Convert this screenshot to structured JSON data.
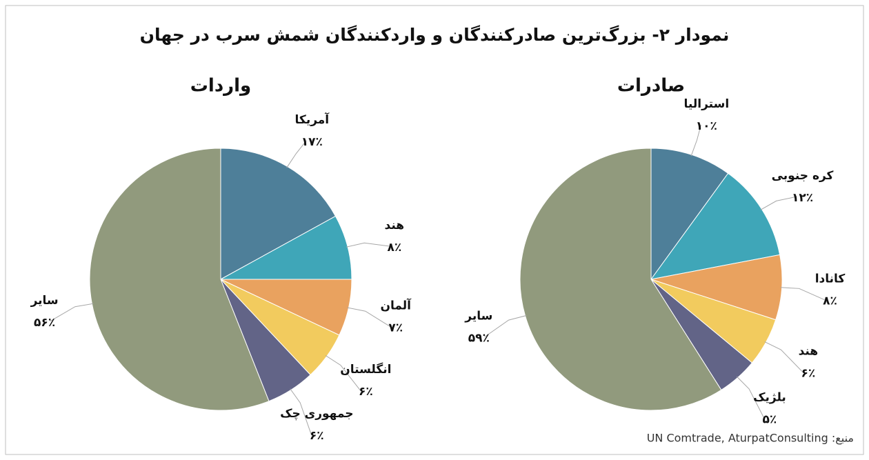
{
  "title": "نمودار ۲- بزرگ‌ترین صادرکنندگان و واردکنندگان شمش سرب در جهان",
  "source": "منبع: UN Comtrade, AturpatConsulting",
  "chart_data": [
    {
      "type": "pie",
      "title": "واردات",
      "categories": [
        "آمریکا",
        "هند",
        "آلمان",
        "انگلستان",
        "جمهوری چک",
        "سایر"
      ],
      "values": [
        17,
        8,
        7,
        6,
        6,
        56
      ],
      "value_labels": [
        "۱۷٪",
        "۸٪",
        "۷٪",
        "۶٪",
        "۶٪",
        "۵۶٪"
      ],
      "colors": [
        "#4e7f99",
        "#3fa6b8",
        "#e9a25f",
        "#f2cb5e",
        "#626487",
        "#919a7d"
      ]
    },
    {
      "type": "pie",
      "title": "صادرات",
      "categories": [
        "استرالیا",
        "کره جنوبی",
        "کانادا",
        "هند",
        "بلژیک",
        "سایر"
      ],
      "values": [
        10,
        12,
        8,
        6,
        5,
        59
      ],
      "value_labels": [
        "۱۰٪",
        "۱۲٪",
        "۸٪",
        "۶٪",
        "۵٪",
        "۵۹٪"
      ],
      "colors": [
        "#4e7f99",
        "#3fa6b8",
        "#e9a25f",
        "#f2cb5e",
        "#626487",
        "#919a7d"
      ]
    }
  ]
}
